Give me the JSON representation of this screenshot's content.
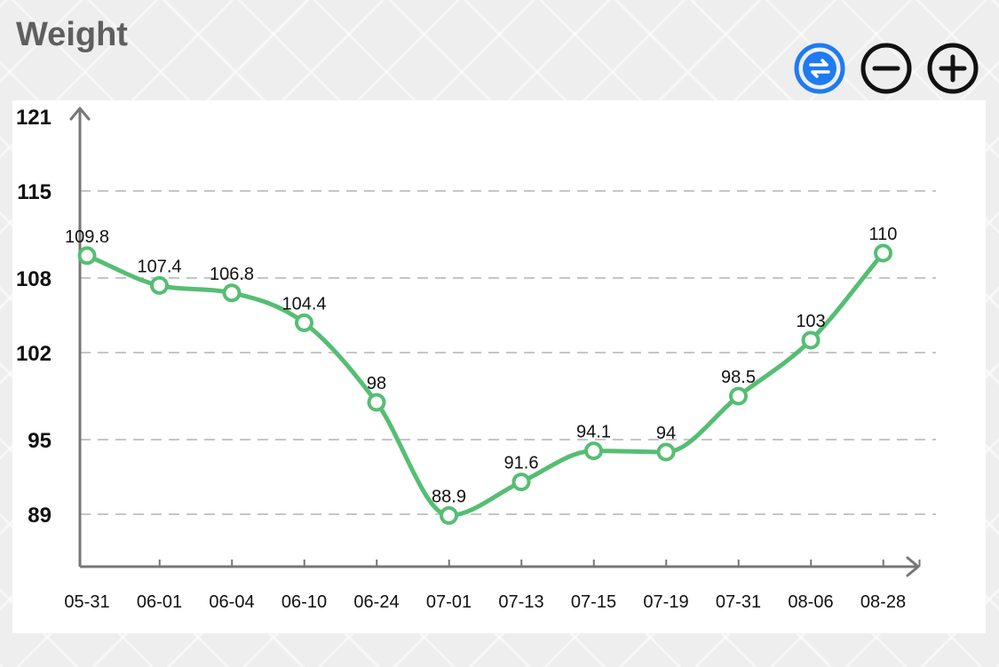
{
  "header": {
    "title": "Weight"
  },
  "toolbar": {
    "swap_icon": "swap-arrows-icon",
    "zoom_out_icon": "zoom-out-icon",
    "zoom_in_icon": "zoom-in-icon",
    "accent_color": "#1E7BF0"
  },
  "chart_data": {
    "type": "line",
    "title": "Weight",
    "categories": [
      "05-31",
      "06-01",
      "06-04",
      "06-10",
      "06-24",
      "07-01",
      "07-13",
      "07-15",
      "07-19",
      "07-31",
      "08-06",
      "08-28"
    ],
    "series": [
      {
        "values": [
          109.8,
          107.4,
          106.8,
          104.4,
          98,
          88.9,
          91.6,
          94.1,
          94,
          98.5,
          103,
          110
        ],
        "color": "#55BE73"
      }
    ],
    "yticks": [
      89,
      95,
      102,
      108,
      115,
      121
    ],
    "ylim": [
      85,
      121
    ],
    "grid": true,
    "grid_style": "dashed-horizontal",
    "smooth": true,
    "markers": "hollow-circle",
    "data_labels": true
  }
}
